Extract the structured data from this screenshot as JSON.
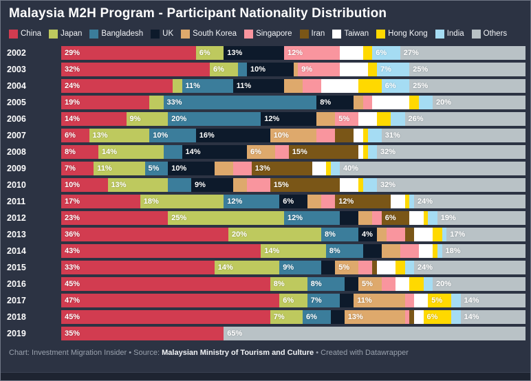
{
  "title": "Malaysia M2H Program - Participant Nationality Distribution",
  "legend": [
    {
      "label": "China",
      "color": "#d23c50"
    },
    {
      "label": "Japan",
      "color": "#bec95e"
    },
    {
      "label": "Bangladesh",
      "color": "#3b7d9b"
    },
    {
      "label": "UK",
      "color": "#0d1a2b"
    },
    {
      "label": "South Korea",
      "color": "#dea96c"
    },
    {
      "label": "Singapore",
      "color": "#f9959e"
    },
    {
      "label": "Iran",
      "color": "#7a5617"
    },
    {
      "label": "Taiwan",
      "color": "#ffffff"
    },
    {
      "label": "Hong Kong",
      "color": "#ffd900"
    },
    {
      "label": "India",
      "color": "#a5dcf3"
    },
    {
      "label": "Others",
      "color": "#b9c2c6"
    }
  ],
  "chart_data": {
    "type": "bar",
    "variant": "horizontal-stacked-100",
    "unit": "%",
    "title": "Malaysia M2H Program - Participant Nationality Distribution",
    "series_order": [
      "China",
      "Japan",
      "Bangladesh",
      "UK",
      "South Korea",
      "Singapore",
      "Iran",
      "Taiwan",
      "Hong Kong",
      "India",
      "Others"
    ],
    "rows": [
      {
        "year": "2002",
        "values": [
          29,
          6,
          0,
          13,
          0,
          12,
          0,
          5,
          2,
          6,
          27
        ],
        "labels": [
          "29%",
          "6%",
          "",
          "13%",
          "",
          "12%",
          "",
          "",
          "",
          "6%",
          "27%"
        ]
      },
      {
        "year": "2003",
        "values": [
          32,
          6,
          2,
          10,
          1,
          9,
          0,
          6,
          2,
          7,
          25
        ],
        "labels": [
          "32%",
          "6%",
          "",
          "10%",
          "",
          "9%",
          "",
          "",
          "",
          "7%",
          "25%"
        ]
      },
      {
        "year": "2004",
        "values": [
          24,
          2,
          11,
          11,
          4,
          4,
          0,
          8,
          5,
          6,
          25
        ],
        "labels": [
          "24%",
          "",
          "11%",
          "11%",
          "",
          "",
          "",
          "",
          "",
          "6%",
          "25%"
        ]
      },
      {
        "year": "2005",
        "values": [
          19,
          3,
          33,
          8,
          2,
          2,
          0,
          8,
          2,
          3,
          20
        ],
        "labels": [
          "19%",
          "",
          "33%",
          "8%",
          "",
          "",
          "",
          "",
          "",
          "",
          "20%"
        ]
      },
      {
        "year": "2006",
        "values": [
          14,
          9,
          20,
          12,
          4,
          5,
          0,
          4,
          3,
          3,
          26
        ],
        "labels": [
          "14%",
          "9%",
          "20%",
          "12%",
          "",
          "5%",
          "",
          "",
          "",
          "",
          "26%"
        ]
      },
      {
        "year": "2007",
        "values": [
          6,
          13,
          10,
          16,
          10,
          4,
          4,
          2,
          1,
          3,
          31
        ],
        "labels": [
          "6%",
          "13%",
          "10%",
          "16%",
          "10%",
          "",
          "",
          "",
          "",
          "",
          "31%"
        ]
      },
      {
        "year": "2008",
        "values": [
          8,
          14,
          4,
          14,
          6,
          3,
          15,
          1,
          1,
          2,
          32
        ],
        "labels": [
          "8%",
          "14%",
          "",
          "14%",
          "6%",
          "",
          "15%",
          "",
          "",
          "",
          "32%"
        ]
      },
      {
        "year": "2009",
        "values": [
          7,
          11,
          5,
          10,
          4,
          4,
          13,
          3,
          1,
          2,
          40
        ],
        "labels": [
          "7%",
          "11%",
          "5%",
          "10%",
          "",
          "",
          "13%",
          "",
          "",
          "",
          "40%"
        ]
      },
      {
        "year": "2010",
        "values": [
          10,
          13,
          5,
          9,
          3,
          5,
          15,
          4,
          1,
          3,
          32
        ],
        "labels": [
          "10%",
          "13%",
          "",
          "9%",
          "",
          "",
          "15%",
          "",
          "",
          "",
          "32%"
        ]
      },
      {
        "year": "2011",
        "values": [
          17,
          18,
          12,
          6,
          3,
          3,
          12,
          3,
          1,
          1,
          24
        ],
        "labels": [
          "17%",
          "18%",
          "12%",
          "6%",
          "",
          "",
          "12%",
          "",
          "",
          "",
          "24%"
        ]
      },
      {
        "year": "2012",
        "values": [
          23,
          25,
          12,
          4,
          3,
          2,
          6,
          3,
          1,
          2,
          19
        ],
        "labels": [
          "23%",
          "25%",
          "12%",
          "",
          "",
          "",
          "6%",
          "",
          "",
          "",
          "19%"
        ]
      },
      {
        "year": "2013",
        "values": [
          36,
          20,
          8,
          4,
          2,
          4,
          2,
          4,
          2,
          1,
          17
        ],
        "labels": [
          "36%",
          "20%",
          "8%",
          "4%",
          "",
          "",
          "",
          "",
          "",
          "",
          "17%"
        ]
      },
      {
        "year": "2014",
        "values": [
          43,
          14,
          8,
          4,
          4,
          4,
          0,
          3,
          1,
          1,
          18
        ],
        "labels": [
          "43%",
          "14%",
          "8%",
          "",
          "",
          "",
          "",
          "",
          "",
          "",
          "18%"
        ]
      },
      {
        "year": "2015",
        "values": [
          33,
          14,
          9,
          3,
          5,
          3,
          1,
          4,
          2,
          2,
          24
        ],
        "labels": [
          "33%",
          "14%",
          "9%",
          "",
          "5%",
          "",
          "",
          "",
          "",
          "",
          "24%"
        ]
      },
      {
        "year": "2016",
        "values": [
          45,
          8,
          8,
          3,
          5,
          3,
          0,
          3,
          3,
          2,
          20
        ],
        "labels": [
          "45%",
          "8%",
          "8%",
          "",
          "5%",
          "",
          "",
          "",
          "",
          "",
          "20%"
        ]
      },
      {
        "year": "2017",
        "values": [
          47,
          6,
          7,
          3,
          11,
          2,
          0,
          3,
          5,
          2,
          14
        ],
        "labels": [
          "47%",
          "6%",
          "7%",
          "",
          "11%",
          "",
          "",
          "",
          "5%",
          "",
          "14%"
        ]
      },
      {
        "year": "2018",
        "values": [
          45,
          7,
          6,
          3,
          13,
          1,
          1,
          2,
          6,
          2,
          14
        ],
        "labels": [
          "45%",
          "7%",
          "6%",
          "",
          "13%",
          "",
          "",
          "",
          "6%",
          "",
          "14%"
        ]
      },
      {
        "year": "2019",
        "values": [
          35,
          0,
          0,
          0,
          0,
          0,
          0,
          0,
          0,
          0,
          65
        ],
        "labels": [
          "35%",
          "",
          "",
          "",
          "",
          "",
          "",
          "",
          "",
          "",
          "65%"
        ]
      }
    ]
  },
  "footer": {
    "chart_prefix": "Chart: ",
    "chart_credit": "Investment Migration Insider",
    "separator1": " • ",
    "source_prefix": "Source: ",
    "source_name": "Malaysian Ministry of Tourism and Culture",
    "separator2": " • ",
    "created_with": "Created with Datawrapper"
  }
}
